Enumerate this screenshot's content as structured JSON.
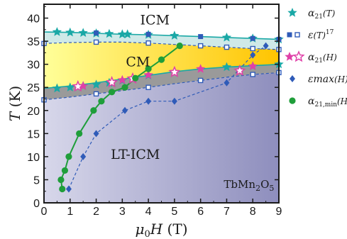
{
  "chart_data": {
    "type": "scatter",
    "xlabel": "μ0H (T)",
    "ylabel": "T (K)",
    "xlim": [
      0,
      9
    ],
    "ylim": [
      0,
      43
    ],
    "xticks": [
      "0",
      "1",
      "2",
      "3",
      "4",
      "5",
      "6",
      "7",
      "8",
      "9"
    ],
    "yticks": [
      "0",
      "5",
      "10",
      "15",
      "20",
      "25",
      "30",
      "35",
      "40"
    ],
    "grid": false,
    "legend_position": "right, outside plot",
    "annotations": {
      "region_icm": "ICM",
      "region_cm": "CM",
      "region_lt_icm": "LT-ICM",
      "compound": "TbMn2O5"
    },
    "boundaries": {
      "upper_icm_cm": {
        "x": [
          0,
          1,
          2,
          3,
          4,
          5,
          6,
          7,
          8,
          9
        ],
        "y": [
          34.5,
          34.7,
          34.8,
          34.8,
          34.6,
          34.3,
          34.0,
          33.7,
          33.4,
          33.2
        ]
      },
      "upper_icm_top": {
        "x": [
          0,
          1,
          2,
          3,
          4,
          5,
          6,
          7,
          8,
          9
        ],
        "y": [
          37.0,
          36.9,
          36.7,
          36.5,
          36.4,
          36.2,
          36.0,
          35.8,
          35.6,
          35.4
        ]
      },
      "cm_gray_top": {
        "x": [
          0,
          1,
          2,
          3,
          4,
          5,
          6,
          7,
          8,
          9
        ],
        "y": [
          24.8,
          25.3,
          26.0,
          26.8,
          27.6,
          28.4,
          29.0,
          29.4,
          29.7,
          30.0
        ]
      },
      "cm_gray_bottom": {
        "x": [
          0,
          1,
          2,
          3,
          4,
          5,
          6,
          7,
          8,
          9
        ],
        "y": [
          22.3,
          22.9,
          23.6,
          24.3,
          25.0,
          25.8,
          26.5,
          27.2,
          27.8,
          28.2
        ]
      }
    },
    "series": [
      {
        "name": "α21(T)",
        "marker": "star-filled",
        "color": "#1aa8a6",
        "x": [
          0.5,
          1.0,
          1.5,
          2.0,
          2.5,
          3.0,
          3.2,
          4.0,
          5.0,
          7.0,
          8.0,
          9.0
        ],
        "y": [
          37.0,
          36.9,
          36.8,
          36.7,
          36.6,
          36.5,
          36.5,
          36.4,
          36.2,
          35.8,
          35.6,
          35.4
        ]
      },
      {
        "name": "α21(T) low",
        "marker": "star-filled",
        "color": "#1aa8a6",
        "x": [
          0.5,
          1.0,
          1.5,
          2.0,
          2.5,
          3.0,
          4.0,
          5.0,
          7.0,
          8.0,
          9.0
        ],
        "y": [
          24.8,
          25.0,
          25.3,
          25.6,
          26.0,
          26.5,
          27.6,
          28.4,
          29.4,
          29.6,
          30.0
        ]
      },
      {
        "name": "ε(T) filled",
        "marker": "square-filled",
        "color": "#2f5bb8",
        "x": [
          2.0,
          4.0,
          6.0,
          8.0,
          9.0
        ],
        "y": [
          36.8,
          36.5,
          36.0,
          35.6,
          35.4
        ]
      },
      {
        "name": "ε(T) open",
        "marker": "square-open",
        "color": "#2f5bb8",
        "x": [
          0,
          2.0,
          4.0,
          6.0,
          7.0,
          8.0,
          9.0
        ],
        "y": [
          34.5,
          34.8,
          34.6,
          34.0,
          33.7,
          33.4,
          33.2
        ]
      },
      {
        "name": "ε(T) open low",
        "marker": "square-open",
        "color": "#2f5bb8",
        "x": [
          0,
          2.0,
          4.0,
          6.0,
          8.0,
          9.0
        ],
        "y": [
          22.3,
          23.6,
          25.0,
          26.5,
          27.8,
          28.2
        ]
      },
      {
        "name": "α21(H) filled",
        "marker": "star-filled",
        "color": "#e040a8",
        "x": [
          1.5,
          3.0,
          4.0,
          6.0,
          8.0
        ],
        "y": [
          25.3,
          26.6,
          27.7,
          29.0,
          29.6
        ]
      },
      {
        "name": "α21(H) open",
        "marker": "star-open",
        "color": "#e040a8",
        "x": [
          1.3,
          2.6,
          3.4,
          5.0,
          7.5
        ],
        "y": [
          25.2,
          26.1,
          26.9,
          28.3,
          28.6
        ]
      },
      {
        "name": "εmax(H)",
        "marker": "diamond",
        "color": "#2f5bb8",
        "dashed": true,
        "x": [
          0.95,
          1.5,
          2.0,
          3.1,
          4.0,
          5.0,
          7.0,
          8.0,
          8.5
        ],
        "y": [
          3.0,
          10.0,
          15.0,
          20.0,
          22.0,
          22.0,
          26.0,
          32.0,
          34.0
        ]
      },
      {
        "name": "α21,min(H)",
        "marker": "circle-filled",
        "color": "#1f9e3a",
        "line": true,
        "x": [
          0.65,
          0.7,
          0.8,
          0.95,
          1.35,
          1.9,
          2.2,
          2.6,
          3.1,
          3.5,
          4.0,
          4.5,
          5.2
        ],
        "y": [
          5.0,
          3.0,
          7.0,
          10.0,
          15.0,
          20.0,
          22.0,
          24.0,
          25.0,
          27.0,
          29.0,
          31.0,
          34.0
        ]
      }
    ],
    "legend": [
      {
        "symbol": "star-filled",
        "color": "#1aa8a6",
        "label": "α21(T)"
      },
      {
        "symbol": "square-pair",
        "color": "#2f5bb8",
        "label": "ε(T)17"
      },
      {
        "symbol": "star-pair",
        "color": "#e040a8",
        "label": "α21(H)"
      },
      {
        "symbol": "diamond",
        "color": "#2f5bb8",
        "label": "εmax(H)17"
      },
      {
        "symbol": "circle-filled",
        "color": "#1f9e3a",
        "label": "α21,min(H)"
      }
    ],
    "colors": {
      "icm_fill": "#cfe9e8",
      "cm_fill_left": "#ffff99",
      "cm_fill_right": "#ffc400",
      "gray_band": "#9a9a9a",
      "lt_icm_left": "#d7d7ea",
      "lt_icm_right": "#8e8ebd"
    }
  }
}
